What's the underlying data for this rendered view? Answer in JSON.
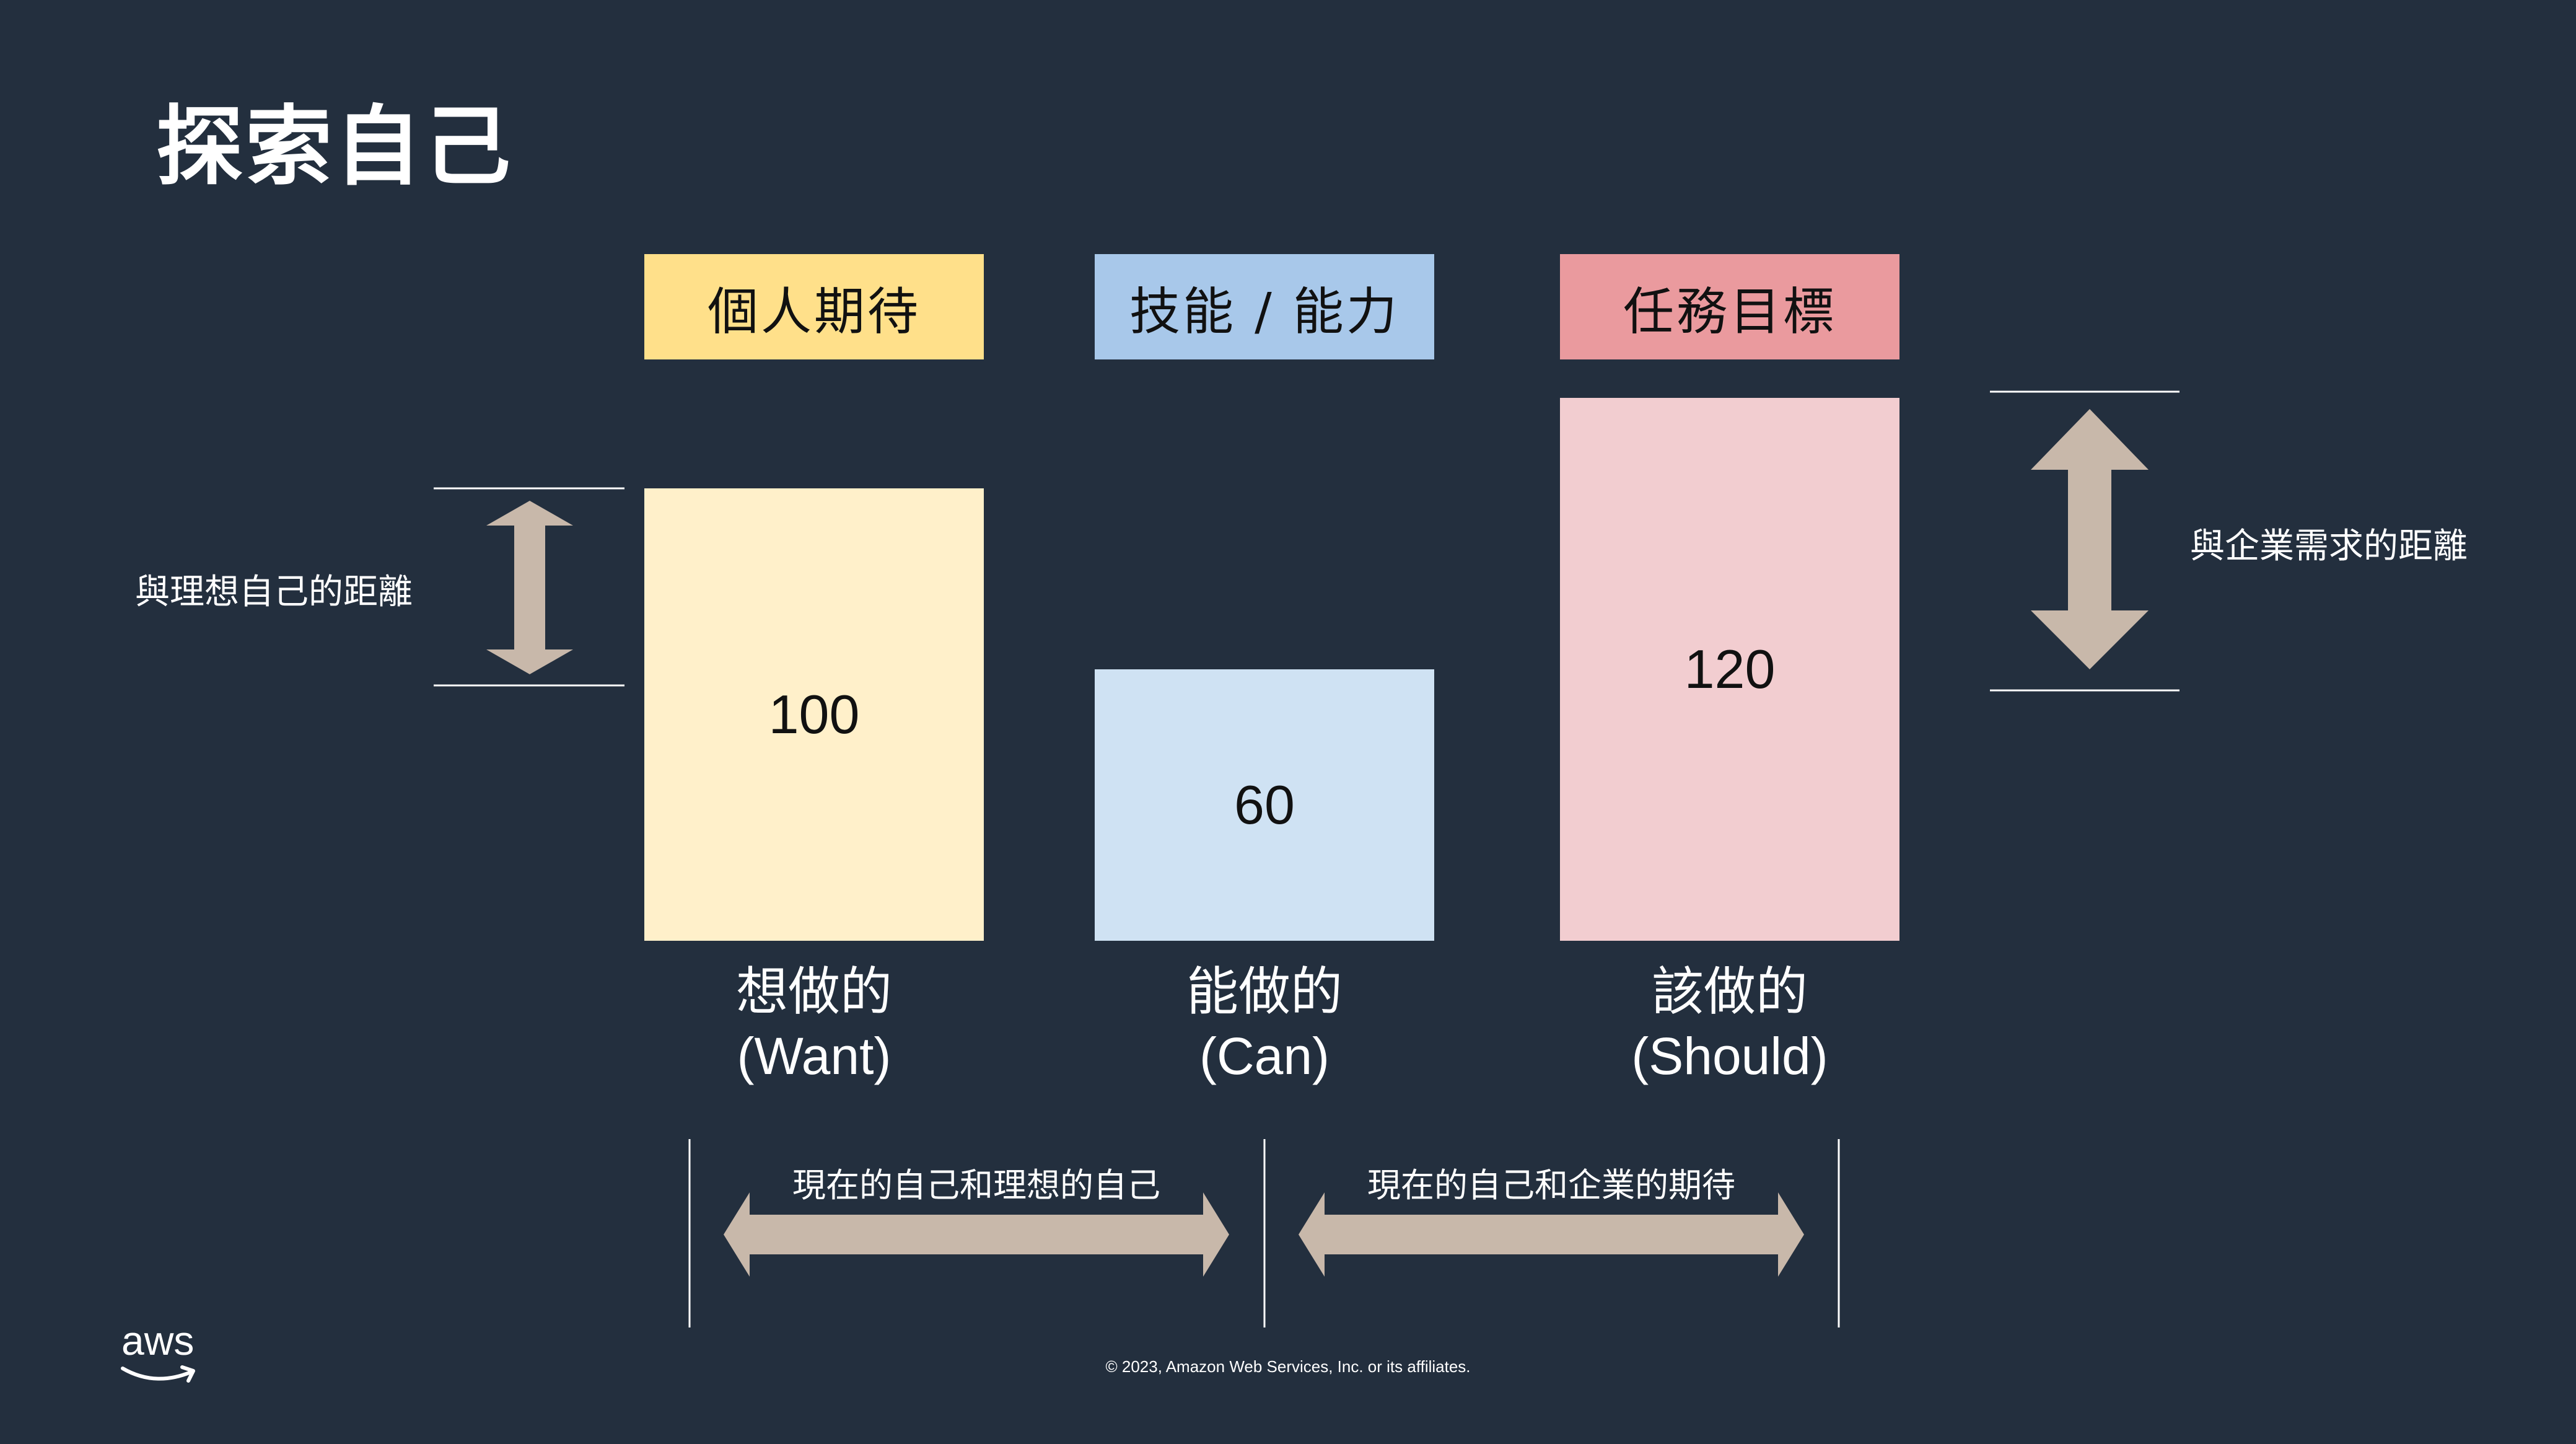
{
  "slide": {
    "title": "探索自己",
    "colors": {
      "background": "#232f3e",
      "want_header": "#ffe08a",
      "want_bar": "#fff0ca",
      "can_header": "#a8c8ea",
      "can_bar": "#cfe2f3",
      "should_header": "#ea9a9e",
      "should_bar": "#f2cdd0",
      "arrow": "#c8b8aa"
    },
    "columns": [
      {
        "id": "want",
        "header": "個人期待",
        "value": 100,
        "label_zh": "想做的",
        "label_en": "(Want)"
      },
      {
        "id": "can",
        "header": "技能 / 能力",
        "value": 60,
        "label_zh": "能做的",
        "label_en": "(Can)"
      },
      {
        "id": "should",
        "header": "任務目標",
        "value": 120,
        "label_zh": "該做的",
        "label_en": "(Should)"
      }
    ],
    "left_gap_label": "與理想自己的距離",
    "right_gap_label": "與企業需求的距離",
    "bottom_arrows": [
      {
        "label": "現在的自己和理想的自己"
      },
      {
        "label": "現在的自己和企業的期待"
      }
    ],
    "footer": {
      "logo_text": "aws",
      "copyright": "© 2023, Amazon Web Services, Inc. or its affiliates."
    }
  }
}
